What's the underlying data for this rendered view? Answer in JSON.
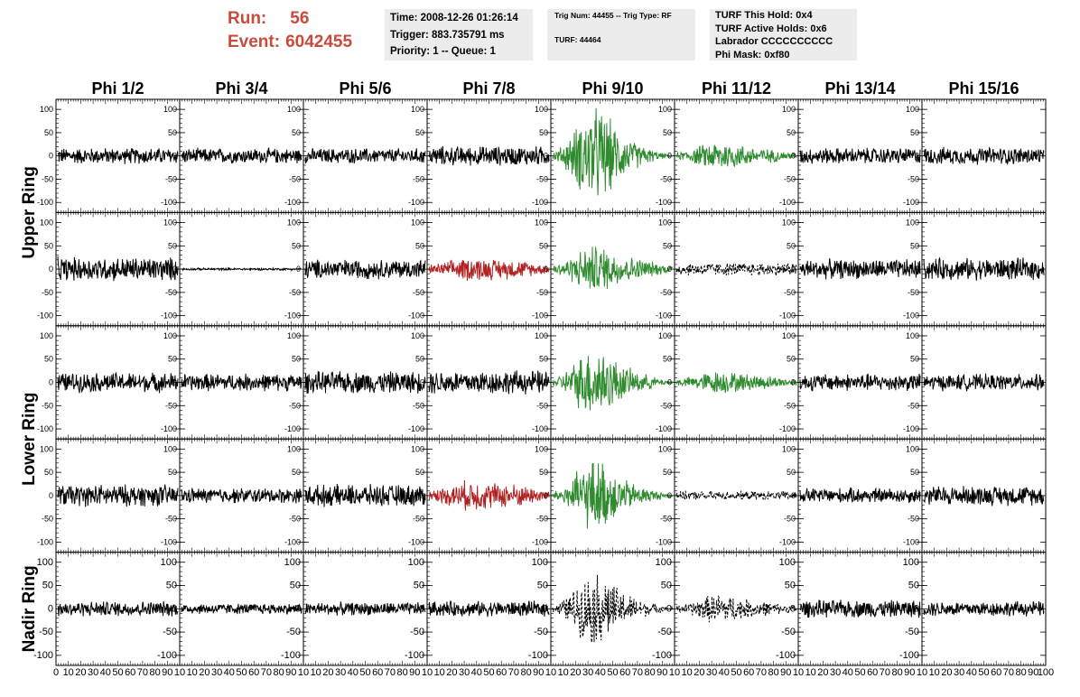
{
  "header": {
    "run_label": "Run:",
    "run_value": "56",
    "event_label": "Event:",
    "event_value": "6042455",
    "time": "Time: 2008-12-26 01:26:14",
    "trigger": "Trigger: 883.735791 ms",
    "priority": "Priority: 1 -- Queue: 1",
    "trig_num": "Trig Num: 44455 -- Trig Type: RF",
    "turf": "TURF: 44464",
    "turf_this_hold": "TURF This Hold: 0x4",
    "turf_active_holds": "TURF Active Holds: 0x6",
    "labrador": "Labrador CCCCCCCCCC",
    "phi_mask": "Phi Mask: 0xf80"
  },
  "colors": {
    "title_red": "#c84b3c",
    "info_bg": "#ececec",
    "trace_black": "#000000",
    "trace_green": "#2e8b2e",
    "trace_red": "#b22222"
  },
  "chart_data": {
    "type": "line",
    "columns": [
      "Phi 1/2",
      "Phi 3/4",
      "Phi 5/6",
      "Phi 7/8",
      "Phi 9/10",
      "Phi 11/12",
      "Phi 13/14",
      "Phi 15/16"
    ],
    "rows": [
      "Upper Ring",
      "Lower Ring",
      "Nadir Ring"
    ],
    "subrows": 5,
    "xlim": [
      0,
      100
    ],
    "ylim": [
      -110,
      110
    ],
    "y_ticks": [
      -100,
      -50,
      0,
      50,
      100
    ],
    "x_tick_labels": [
      [
        "0",
        "10",
        "20",
        "30",
        "40",
        "50",
        "60",
        "70",
        "80",
        "90",
        "10"
      ],
      [
        "10",
        "20",
        "30",
        "40",
        "50",
        "60",
        "70",
        "80",
        "90",
        "10"
      ],
      [
        "10",
        "20",
        "30",
        "40",
        "50",
        "60",
        "70",
        "80",
        "90",
        "10"
      ],
      [
        "10",
        "20",
        "30",
        "40",
        "50",
        "60",
        "70",
        "80",
        "90",
        "10"
      ],
      [
        "10",
        "20",
        "30",
        "40",
        "50",
        "60",
        "70",
        "80",
        "90",
        "10"
      ],
      [
        "10",
        "20",
        "30",
        "40",
        "50",
        "60",
        "70",
        "80",
        "90",
        "10"
      ],
      [
        "10",
        "20",
        "30",
        "40",
        "50",
        "60",
        "70",
        "80",
        "90",
        "10"
      ],
      [
        "10",
        "20",
        "30",
        "40",
        "50",
        "60",
        "70",
        "80",
        "90",
        "100"
      ]
    ],
    "traces": [
      [
        {
          "a": 15,
          "c": "black"
        },
        {
          "a": 14,
          "c": "black"
        },
        {
          "a": 14,
          "c": "black"
        },
        {
          "a": 18,
          "c": "black"
        },
        {
          "a": 55,
          "c": "green",
          "b": 1
        },
        {
          "a": 28,
          "c": "green",
          "b": 0.5
        },
        {
          "a": 15,
          "c": "black"
        },
        {
          "a": 16,
          "c": "black"
        }
      ],
      [
        {
          "a": 22,
          "c": "black"
        },
        {
          "a": 2,
          "c": "black"
        },
        {
          "a": 18,
          "c": "black"
        },
        {
          "a": 30,
          "c": "red",
          "b": 0.3
        },
        {
          "a": 40,
          "c": "green",
          "b": 0.6
        },
        {
          "a": 12,
          "c": "black",
          "dash": 1
        },
        {
          "a": 18,
          "c": "black"
        },
        {
          "a": 20,
          "c": "black"
        }
      ],
      [
        {
          "a": 18,
          "c": "black"
        },
        {
          "a": 16,
          "c": "black"
        },
        {
          "a": 20,
          "c": "black"
        },
        {
          "a": 22,
          "c": "black"
        },
        {
          "a": 45,
          "c": "green",
          "b": 0.9
        },
        {
          "a": 25,
          "c": "green",
          "b": 0.4
        },
        {
          "a": 16,
          "c": "black"
        },
        {
          "a": 15,
          "c": "black"
        }
      ],
      [
        {
          "a": 20,
          "c": "black"
        },
        {
          "a": 14,
          "c": "black"
        },
        {
          "a": 20,
          "c": "black"
        },
        {
          "a": 38,
          "c": "red",
          "b": 0.3
        },
        {
          "a": 45,
          "c": "green",
          "b": 0.9
        },
        {
          "a": 8,
          "c": "black",
          "dash": 1
        },
        {
          "a": 14,
          "c": "black"
        },
        {
          "a": 18,
          "c": "black"
        }
      ],
      [
        {
          "a": 14,
          "c": "black"
        },
        {
          "a": 10,
          "c": "black"
        },
        {
          "a": 12,
          "c": "black"
        },
        {
          "a": 14,
          "c": "black"
        },
        {
          "a": 45,
          "c": "black",
          "dash": 1,
          "b": 0.9
        },
        {
          "a": 28,
          "c": "black",
          "dash": 1,
          "b": 0.5
        },
        {
          "a": 16,
          "c": "black"
        },
        {
          "a": 14,
          "c": "black"
        }
      ]
    ]
  }
}
